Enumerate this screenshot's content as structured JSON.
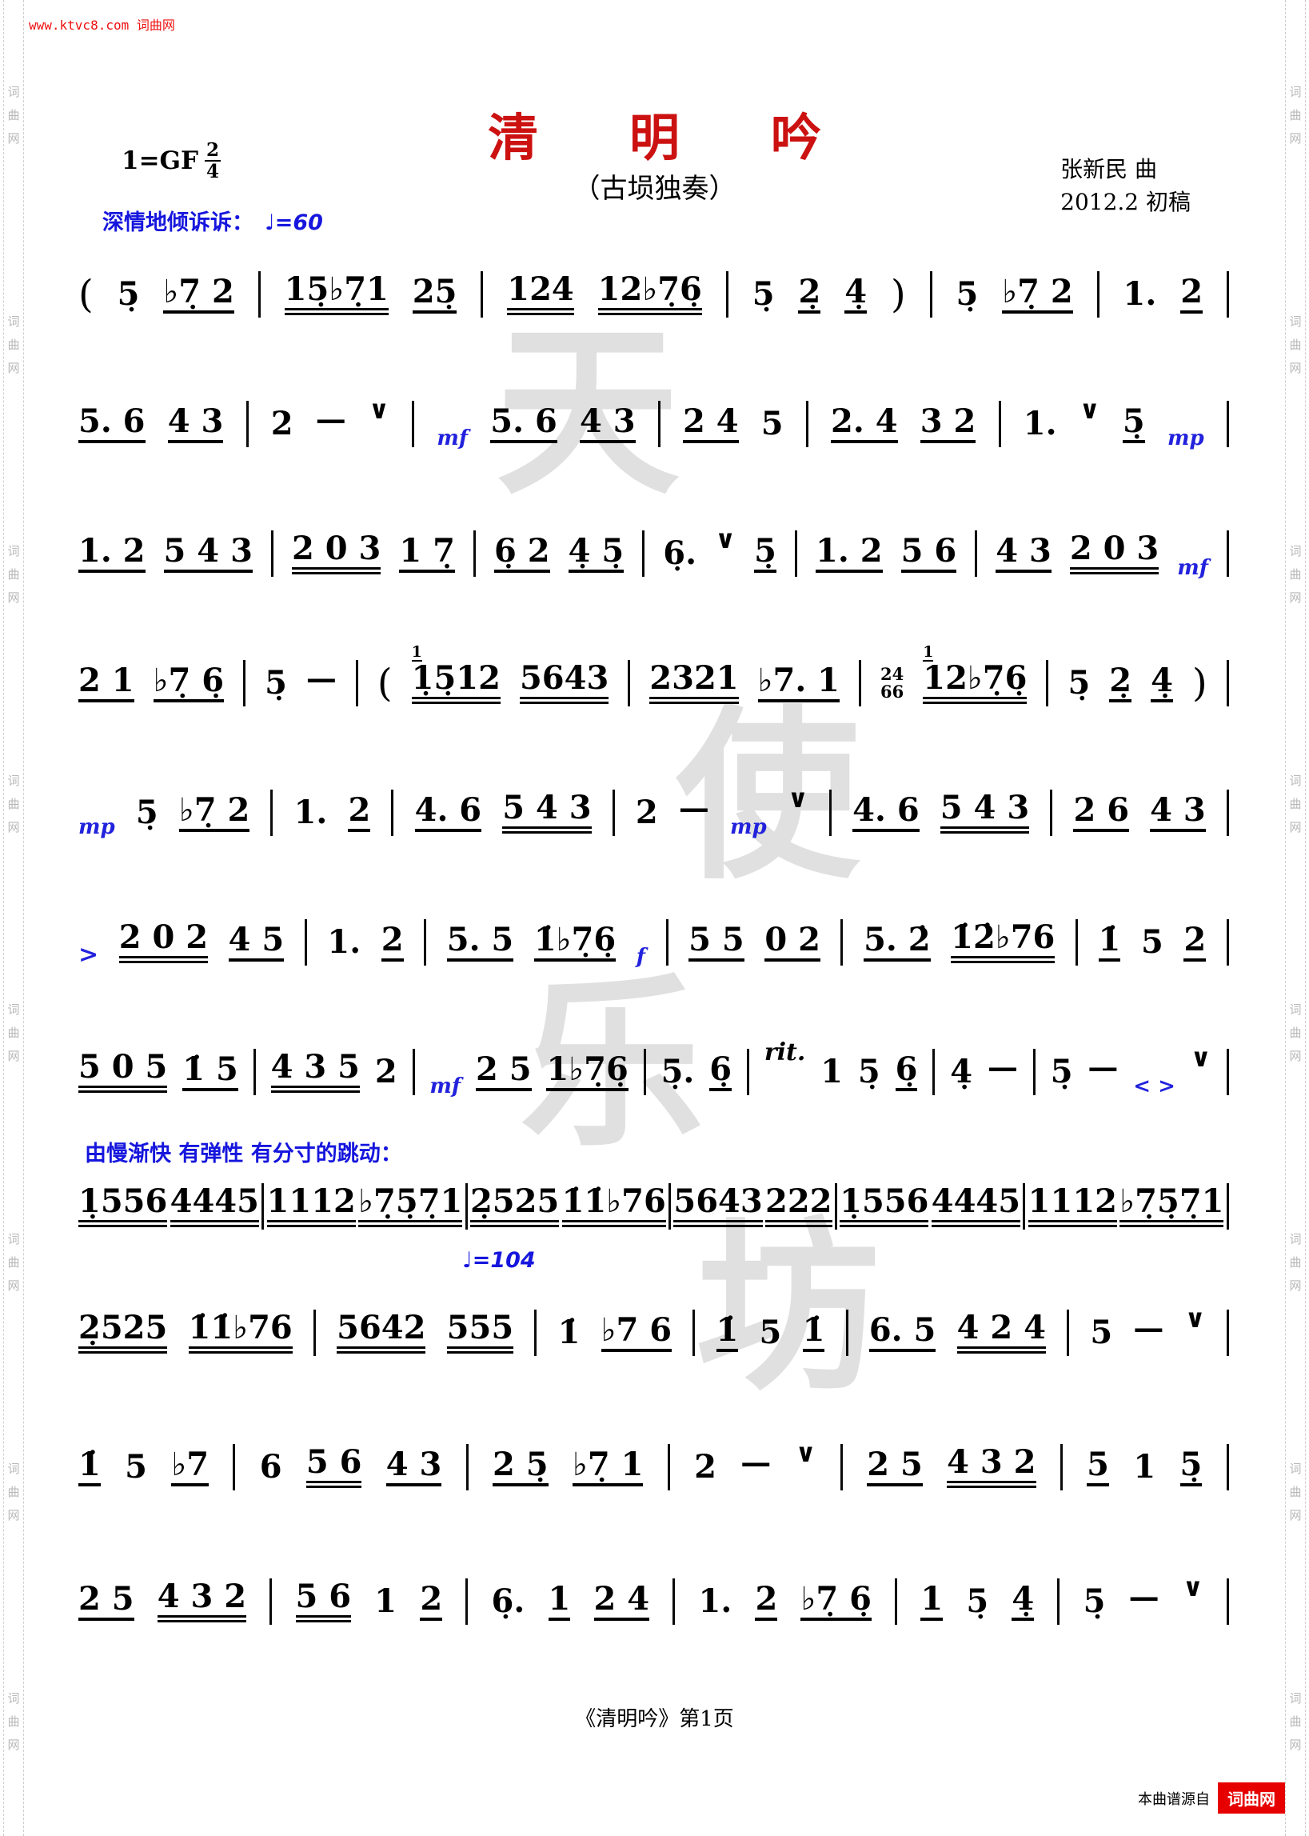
{
  "page": {
    "site_link": "www.ktvc8.com 词曲网",
    "side_watermark": "词曲网",
    "center_watermark": [
      "天",
      "使",
      "乐",
      "坊"
    ],
    "footer": "《清明吟》第1页",
    "credit_prefix": "本曲谱源自",
    "credit_brand": "词曲网"
  },
  "header": {
    "key_signature": "1=GF",
    "time_numerator": "2",
    "time_denominator": "4",
    "title": "清 明 吟",
    "subtitle": "（古埙独奏）",
    "composer": "张新民 曲",
    "draft": "2012.2 初稿",
    "expression": "深情地倾诉诉：",
    "tempo1": "♩=60",
    "section_note": "由慢渐快 有弹性 有分寸的跳动：",
    "tempo2": "♩=104"
  },
  "colors": {
    "title_red": "#cc1111",
    "score_blue": "#2222dd",
    "brand_red": "#e60000",
    "watermark_gray": "#e0e0e0"
  },
  "systems": [
    [
      {
        "t": "(",
        "c": "paren"
      },
      {
        "t": "5̣"
      },
      {
        "t": "♭7̣ 2",
        "u": 1
      },
      {
        "t": "|",
        "c": "bar"
      },
      {
        "t": "15̣♭7̣1",
        "u": 2
      },
      {
        "t": "25̣",
        "u": 1
      },
      {
        "t": "|",
        "c": "bar"
      },
      {
        "t": "124",
        "u": 2
      },
      {
        "t": "12♭7̣6̣",
        "u": 2
      },
      {
        "t": "|",
        "c": "bar"
      },
      {
        "t": "5̣"
      },
      {
        "t": "2̣",
        "u": 1
      },
      {
        "t": "4̣",
        "u": 1
      },
      {
        "t": ")",
        "c": "paren"
      },
      {
        "t": "|",
        "c": "bar"
      },
      {
        "t": "5̣"
      },
      {
        "t": "♭7̣ 2",
        "u": 1
      },
      {
        "t": "|",
        "c": "bar"
      },
      {
        "t": "1."
      },
      {
        "t": "2",
        "u": 1
      },
      {
        "t": "|",
        "c": "bar"
      }
    ],
    [
      {
        "t": "5. 6",
        "u": 1
      },
      {
        "t": "4 3",
        "u": 1
      },
      {
        "t": "|",
        "c": "bar"
      },
      {
        "t": "2"
      },
      {
        "t": "—",
        "c": "dash"
      },
      {
        "t": "∨",
        "c": "breath"
      },
      {
        "t": "|",
        "c": "bar"
      },
      {
        "t": "mf",
        "c": "dyn"
      },
      {
        "t": "5. 6",
        "u": 1
      },
      {
        "t": "4 3",
        "u": 1
      },
      {
        "t": "|",
        "c": "bar"
      },
      {
        "t": "2 4",
        "u": 1
      },
      {
        "t": "5"
      },
      {
        "t": "|",
        "c": "bar"
      },
      {
        "t": "2. 4",
        "u": 1
      },
      {
        "t": "3 2",
        "u": 1
      },
      {
        "t": "|",
        "c": "bar"
      },
      {
        "t": "1."
      },
      {
        "t": "∨",
        "c": "breath"
      },
      {
        "t": "5̣",
        "u": 1
      },
      {
        "t": "mp",
        "c": "dyn"
      },
      {
        "t": "|",
        "c": "bar"
      }
    ],
    [
      {
        "t": "1. 2",
        "u": 1
      },
      {
        "t": "5 4 3",
        "u": 1
      },
      {
        "t": "|",
        "c": "bar"
      },
      {
        "t": "2 0 3",
        "u": 2
      },
      {
        "t": "1 7̣",
        "u": 1
      },
      {
        "t": "|",
        "c": "bar"
      },
      {
        "t": "6̣ 2",
        "u": 1
      },
      {
        "t": "4̣ 5̣",
        "u": 1
      },
      {
        "t": "|",
        "c": "bar"
      },
      {
        "t": "6̣."
      },
      {
        "t": "∨",
        "c": "breath"
      },
      {
        "t": "5̣",
        "u": 1
      },
      {
        "t": "|",
        "c": "bar"
      },
      {
        "t": "1. 2",
        "u": 1
      },
      {
        "t": "5 6",
        "u": 1
      },
      {
        "t": "|",
        "c": "bar"
      },
      {
        "t": "4 3",
        "u": 1
      },
      {
        "t": "2 0 3",
        "u": 2
      },
      {
        "t": "mf",
        "c": "dyn"
      },
      {
        "t": "|",
        "c": "bar"
      }
    ],
    [
      {
        "t": "2 1",
        "u": 1
      },
      {
        "t": "♭7̣ 6̣",
        "u": 1
      },
      {
        "t": "|",
        "c": "bar"
      },
      {
        "t": "5̣"
      },
      {
        "t": "—",
        "c": "dash"
      },
      {
        "t": "|",
        "c": "bar"
      },
      {
        "t": "(",
        "c": "paren"
      },
      {
        "t": "1̣5̣12",
        "u": 2,
        "sup": "1"
      },
      {
        "t": "5643",
        "u": 2
      },
      {
        "t": "|",
        "c": "bar"
      },
      {
        "t": "2321",
        "u": 2
      },
      {
        "t": "♭7. 1",
        "u": 1
      },
      {
        "t": "|",
        "c": "bar"
      },
      {
        "t": "24",
        "t2": "66",
        "c": "stack"
      },
      {
        "t": "12♭7̣6̣",
        "u": 2,
        "sup": "1"
      },
      {
        "t": "|",
        "c": "bar"
      },
      {
        "t": "5̣"
      },
      {
        "t": "2̣",
        "u": 1
      },
      {
        "t": "4̣",
        "u": 1
      },
      {
        "t": ")",
        "c": "paren"
      },
      {
        "t": "|",
        "c": "bar"
      }
    ],
    [
      {
        "t": "mp",
        "c": "dyn"
      },
      {
        "t": "5̣"
      },
      {
        "t": "♭7̣ 2",
        "u": 1
      },
      {
        "t": "|",
        "c": "bar"
      },
      {
        "t": "1."
      },
      {
        "t": "2",
        "u": 1
      },
      {
        "t": "|",
        "c": "bar"
      },
      {
        "t": "4. 6",
        "u": 1
      },
      {
        "t": "5 4 3",
        "u": 2
      },
      {
        "t": "|",
        "c": "bar"
      },
      {
        "t": "2"
      },
      {
        "t": "—",
        "c": "dash"
      },
      {
        "t": "mp",
        "c": "dyn"
      },
      {
        "t": "∨",
        "c": "breath"
      },
      {
        "t": "|",
        "c": "bar"
      },
      {
        "t": "4. 6",
        "u": 1
      },
      {
        "t": "5 4 3",
        "u": 2
      },
      {
        "t": "|",
        "c": "bar"
      },
      {
        "t": "2 6",
        "u": 1
      },
      {
        "t": "4 3",
        "u": 1
      },
      {
        "t": "|",
        "c": "bar"
      }
    ],
    [
      {
        "t": ">",
        "c": "acc"
      },
      {
        "t": "2 0 2",
        "u": 2
      },
      {
        "t": "4 5",
        "u": 1
      },
      {
        "t": "|",
        "c": "bar"
      },
      {
        "t": "1."
      },
      {
        "t": "2",
        "u": 1
      },
      {
        "t": "|",
        "c": "bar"
      },
      {
        "t": "5. 5",
        "u": 1
      },
      {
        "t": "1̇♭7̣6̣",
        "u": 1
      },
      {
        "t": "f",
        "c": "dyn"
      },
      {
        "t": "|",
        "c": "bar"
      },
      {
        "t": "5 5",
        "u": 1
      },
      {
        "t": "0 2",
        "u": 1
      },
      {
        "t": "|",
        "c": "bar"
      },
      {
        "t": "5. 2̇",
        "u": 1
      },
      {
        "t": "1̇2̇♭76",
        "u": 2
      },
      {
        "t": "|",
        "c": "bar"
      },
      {
        "t": "1̇",
        "u": 1
      },
      {
        "t": "5"
      },
      {
        "t": "2",
        "u": 1
      },
      {
        "t": "|",
        "c": "bar"
      }
    ],
    [
      {
        "t": "5 0 5",
        "u": 2
      },
      {
        "t": "1̇ 5",
        "u": 1
      },
      {
        "t": "|",
        "c": "bar"
      },
      {
        "t": "4 3 5",
        "u": 2
      },
      {
        "t": "2"
      },
      {
        "t": "|",
        "c": "bar"
      },
      {
        "t": "mf",
        "c": "dyn"
      },
      {
        "t": "2 5",
        "u": 1
      },
      {
        "t": "1♭7̣6̣",
        "u": 1
      },
      {
        "t": "|",
        "c": "bar"
      },
      {
        "t": "5̣."
      },
      {
        "t": "6̣",
        "u": 1
      },
      {
        "t": "|",
        "c": "bar"
      },
      {
        "t": "rit.",
        "c": "rit"
      },
      {
        "t": "1"
      },
      {
        "t": "5̣"
      },
      {
        "t": "6̣",
        "u": 1
      },
      {
        "t": "|",
        "c": "bar"
      },
      {
        "t": "4̣"
      },
      {
        "t": "—",
        "c": "dash"
      },
      {
        "t": "|",
        "c": "bar"
      },
      {
        "t": "5̣"
      },
      {
        "t": "—",
        "c": "dash"
      },
      {
        "t": "< >",
        "c": "dyn"
      },
      {
        "t": "∨",
        "c": "breath"
      },
      {
        "t": "|",
        "c": "bar"
      }
    ],
    [
      {
        "t": "1̣556",
        "u": 2
      },
      {
        "t": "4445",
        "u": 2
      },
      {
        "t": "|",
        "c": "bar"
      },
      {
        "t": "1112",
        "u": 2
      },
      {
        "t": "♭7̣5̣7̣1",
        "u": 2
      },
      {
        "t": "|",
        "c": "bar"
      },
      {
        "t": "2̣525",
        "u": 2
      },
      {
        "t": "1̇1̇♭76",
        "u": 2
      },
      {
        "t": "|",
        "c": "bar"
      },
      {
        "t": "5643",
        "u": 2
      },
      {
        "t": "222",
        "u": 2
      },
      {
        "t": "|",
        "c": "bar"
      },
      {
        "t": "1̣556",
        "u": 2
      },
      {
        "t": "4445",
        "u": 2
      },
      {
        "t": "|",
        "c": "bar"
      },
      {
        "t": "1112",
        "u": 2
      },
      {
        "t": "♭7̣5̣7̣1",
        "u": 2
      },
      {
        "t": "|",
        "c": "bar"
      }
    ],
    [
      {
        "t": "2̣525",
        "u": 2
      },
      {
        "t": "1̇1̇♭76",
        "u": 2
      },
      {
        "t": "|",
        "c": "bar"
      },
      {
        "t": "5642",
        "u": 2
      },
      {
        "t": "555",
        "u": 2
      },
      {
        "t": "|",
        "c": "bar"
      },
      {
        "t": "1̇"
      },
      {
        "t": "♭7 6",
        "u": 1
      },
      {
        "t": "|",
        "c": "bar"
      },
      {
        "t": "1̇",
        "u": 1
      },
      {
        "t": "5"
      },
      {
        "t": "1̇",
        "u": 1
      },
      {
        "t": "|",
        "c": "bar"
      },
      {
        "t": "6. 5",
        "u": 1
      },
      {
        "t": "4 2 4",
        "u": 2
      },
      {
        "t": "|",
        "c": "bar"
      },
      {
        "t": "5"
      },
      {
        "t": "—",
        "c": "dash"
      },
      {
        "t": "∨",
        "c": "breath"
      },
      {
        "t": "|",
        "c": "bar"
      }
    ],
    [
      {
        "t": "1̇",
        "u": 1
      },
      {
        "t": "5"
      },
      {
        "t": "♭7",
        "u": 1
      },
      {
        "t": "|",
        "c": "bar"
      },
      {
        "t": "6"
      },
      {
        "t": "5 6",
        "u": 2
      },
      {
        "t": "4 3",
        "u": 1
      },
      {
        "t": "|",
        "c": "bar"
      },
      {
        "t": "2 5̣",
        "u": 1
      },
      {
        "t": "♭7̣ 1",
        "u": 1
      },
      {
        "t": "|",
        "c": "bar"
      },
      {
        "t": "2"
      },
      {
        "t": "—",
        "c": "dash"
      },
      {
        "t": "∨",
        "c": "breath"
      },
      {
        "t": "|",
        "c": "bar"
      },
      {
        "t": "2 5",
        "u": 1
      },
      {
        "t": "4 3 2",
        "u": 2
      },
      {
        "t": "|",
        "c": "bar"
      },
      {
        "t": "5",
        "u": 1
      },
      {
        "t": "1"
      },
      {
        "t": "5̣",
        "u": 1
      },
      {
        "t": "|",
        "c": "bar"
      }
    ],
    [
      {
        "t": "2 5",
        "u": 1
      },
      {
        "t": "4 3 2",
        "u": 2
      },
      {
        "t": "|",
        "c": "bar"
      },
      {
        "t": "5 6",
        "u": 2
      },
      {
        "t": "1"
      },
      {
        "t": "2",
        "u": 1
      },
      {
        "t": "|",
        "c": "bar"
      },
      {
        "t": "6̣."
      },
      {
        "t": "1",
        "u": 1
      },
      {
        "t": "2 4",
        "u": 1
      },
      {
        "t": "|",
        "c": "bar"
      },
      {
        "t": "1."
      },
      {
        "t": "2",
        "u": 1
      },
      {
        "t": "♭7̣ 6̣",
        "u": 1
      },
      {
        "t": "|",
        "c": "bar"
      },
      {
        "t": "1",
        "u": 1
      },
      {
        "t": "5̣"
      },
      {
        "t": "4̣",
        "u": 1
      },
      {
        "t": "|",
        "c": "bar"
      },
      {
        "t": "5̣"
      },
      {
        "t": "—",
        "c": "dash"
      },
      {
        "t": "∨",
        "c": "breath"
      },
      {
        "t": "|",
        "c": "bar"
      }
    ]
  ]
}
